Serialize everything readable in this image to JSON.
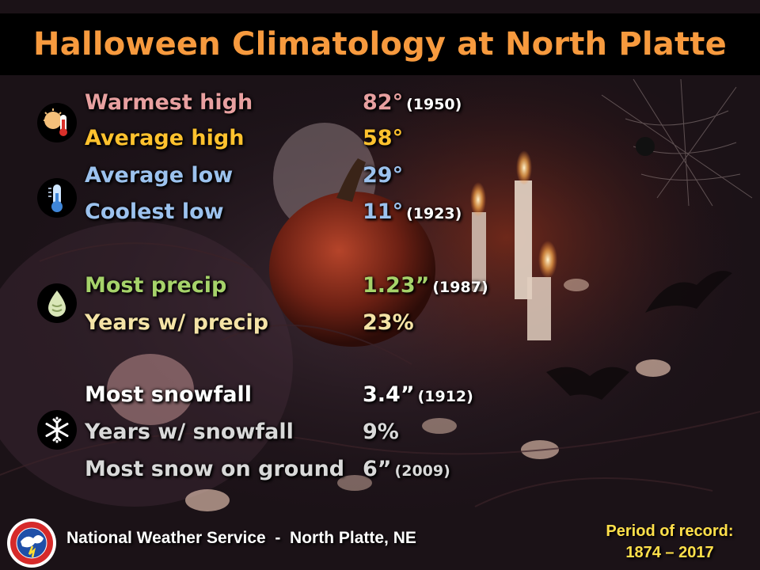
{
  "title": "Halloween Climatology at North Platte",
  "colors": {
    "title": "#f79a3e",
    "warmest": "#e8a0a0",
    "average_high": "#ffc22e",
    "low": "#9cc2ee",
    "precip": "#a6d36a",
    "precip_years": "#f4e3a6",
    "snow": "#ffffff",
    "snow_ground": "#d9d9d9",
    "period": "#ffe04a"
  },
  "temperature": {
    "warmest_high": {
      "label": "Warmest high",
      "value": "82°",
      "year": "(1950)"
    },
    "average_high": {
      "label": "Average high",
      "value": "58°"
    },
    "average_low": {
      "label": "Average low",
      "value": "29°"
    },
    "coolest_low": {
      "label": "Coolest low",
      "value": "11°",
      "year": "(1923)"
    }
  },
  "precip": {
    "most_precip": {
      "label": "Most precip",
      "value": "1.23”",
      "year": "(1987)"
    },
    "years_precip": {
      "label": "Years w/ precip",
      "value": "23%"
    }
  },
  "snow": {
    "most_snowfall": {
      "label": "Most snowfall",
      "value": "3.4”",
      "year": "(1912)"
    },
    "years_snowfall": {
      "label": "Years w/ snowfall",
      "value": "9%"
    },
    "snow_ground": {
      "label": "Most snow on ground",
      "value": "6”",
      "year": "(2009)"
    }
  },
  "icons": [
    "sun-thermometer-icon",
    "thermometer-cold-icon",
    "raindrop-icon",
    "snowflake-icon",
    "nws-logo"
  ],
  "footer": {
    "agency": "National Weather Service  -  North Platte, NE",
    "period_label": "Period of record:",
    "period_range": "1874 – 2017"
  }
}
